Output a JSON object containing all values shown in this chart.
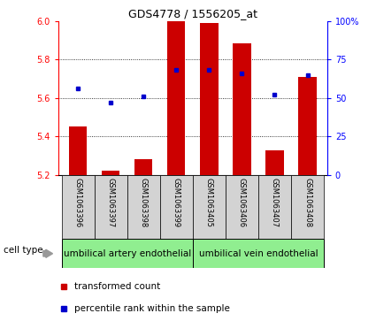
{
  "title": "GDS4778 / 1556205_at",
  "samples": [
    "GSM1063396",
    "GSM1063397",
    "GSM1063398",
    "GSM1063399",
    "GSM1063405",
    "GSM1063406",
    "GSM1063407",
    "GSM1063408"
  ],
  "transformed_count": [
    5.45,
    5.22,
    5.28,
    6.0,
    5.99,
    5.885,
    5.33,
    5.71
  ],
  "percentile_rank": [
    56,
    47,
    51,
    68,
    68,
    66,
    52,
    65
  ],
  "ylim_left": [
    5.2,
    6.0
  ],
  "ylim_right": [
    0,
    100
  ],
  "yticks_left": [
    5.2,
    5.4,
    5.6,
    5.8,
    6.0
  ],
  "yticks_right": [
    0,
    25,
    50,
    75,
    100
  ],
  "ytick_labels_right": [
    "0",
    "25",
    "50",
    "75",
    "100%"
  ],
  "bar_color": "#cc0000",
  "dot_color": "#0000cc",
  "bar_width": 0.55,
  "cell_type_groups": [
    {
      "label": "umbilical artery endothelial",
      "indices": [
        0,
        3
      ]
    },
    {
      "label": "umbilical vein endothelial",
      "indices": [
        4,
        7
      ]
    }
  ],
  "group_color": "#90ee90",
  "legend_items": [
    {
      "label": "transformed count",
      "color": "#cc0000"
    },
    {
      "label": "percentile rank within the sample",
      "color": "#0000cc"
    }
  ],
  "cell_type_label": "cell type",
  "bar_base": 5.2,
  "label_box_color": "#d3d3d3",
  "grid_dotted_color": "#000000"
}
